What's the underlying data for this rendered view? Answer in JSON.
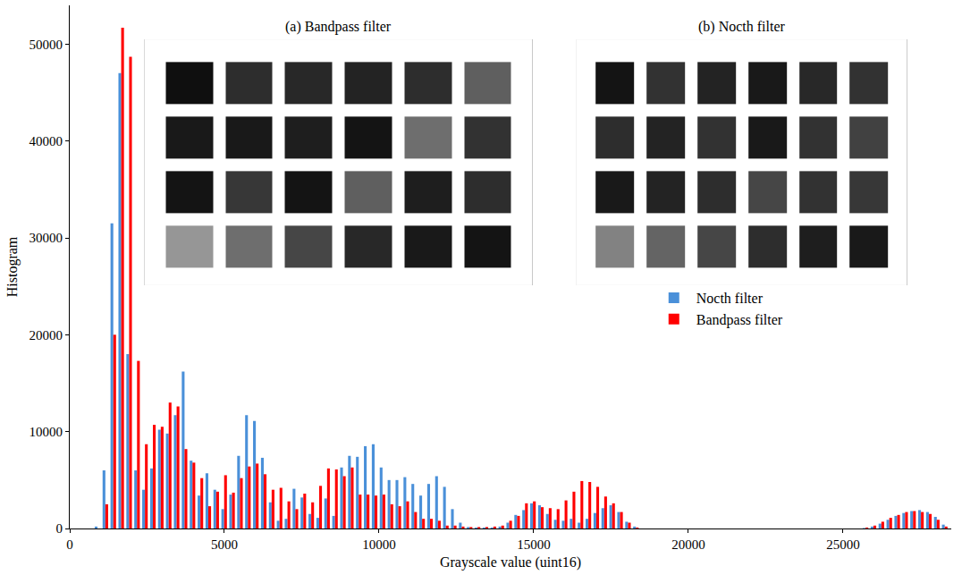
{
  "chart_data": [
    {
      "type": "bar",
      "x_label": "Grayscale value (uint16)",
      "y_label": "Histogram",
      "bins": [
        768,
        1024,
        1280,
        1536,
        1792,
        2048,
        2304,
        2560,
        2816,
        3072,
        3328,
        3584,
        3840,
        4096,
        4352,
        4608,
        4864,
        5120,
        5376,
        5632,
        5888,
        6144,
        6400,
        6656,
        6912,
        7168,
        7424,
        7680,
        7936,
        8192,
        8448,
        8704,
        8960,
        9216,
        9472,
        9728,
        9984,
        10240,
        10496,
        10752,
        11008,
        11264,
        11520,
        11776,
        12032,
        12288,
        12544,
        12800,
        13056,
        13312,
        13568,
        13824,
        14080,
        14336,
        14592,
        14848,
        15104,
        15360,
        15616,
        15872,
        16128,
        16384,
        16640,
        16896,
        17152,
        17408,
        17664,
        17920,
        18176,
        18432,
        18688,
        18944,
        19200,
        19456,
        19712,
        19968,
        20224,
        20480,
        20736,
        20992,
        21248,
        21504,
        21760,
        22016,
        22272,
        22528,
        22784,
        23040,
        23296,
        23552,
        23808,
        24064,
        24320,
        24576,
        24832,
        25088,
        25344,
        25600,
        25856,
        26112,
        26368,
        26624,
        26880,
        27136,
        27392,
        27648,
        27904,
        28160,
        28416
      ],
      "series": [
        {
          "name": "Nocth filter",
          "color": "#4a90d9",
          "values": [
            200,
            6000,
            31500,
            47000,
            18000,
            6000,
            4000,
            6200,
            10200,
            9800,
            11700,
            16200,
            7000,
            3400,
            5700,
            4000,
            2000,
            3500,
            7500,
            11700,
            11100,
            7300,
            2700,
            800,
            1000,
            4100,
            3200,
            1500,
            1100,
            3100,
            1300,
            6300,
            7500,
            7400,
            8500,
            8700,
            6300,
            5000,
            5000,
            5300,
            4600,
            3400,
            4600,
            5400,
            4300,
            2000,
            600,
            150,
            100,
            100,
            100,
            200,
            600,
            1400,
            1900,
            2600,
            2400,
            1500,
            900,
            800,
            1000,
            600,
            1000,
            1600,
            2100,
            2400,
            1700,
            700,
            200,
            0,
            0,
            0,
            0,
            0,
            0,
            0,
            0,
            0,
            0,
            0,
            0,
            0,
            0,
            0,
            0,
            0,
            0,
            0,
            0,
            0,
            0,
            0,
            0,
            0,
            0,
            0,
            0,
            50,
            200,
            500,
            900,
            1300,
            1600,
            1800,
            1900,
            1700,
            1200,
            400
          ]
        },
        {
          "name": "Bandpass filter",
          "color": "#ff0000",
          "values": [
            0,
            2500,
            20000,
            51700,
            48700,
            17300,
            8700,
            10700,
            10500,
            13000,
            12600,
            8200,
            6800,
            5200,
            2300,
            3800,
            5500,
            3700,
            5200,
            6400,
            6700,
            5600,
            4000,
            4200,
            2800,
            2000,
            3600,
            2700,
            4400,
            6200,
            6100,
            5400,
            6300,
            3500,
            3500,
            3400,
            3500,
            2500,
            2300,
            2800,
            1700,
            1000,
            1000,
            800,
            300,
            300,
            200,
            150,
            150,
            150,
            200,
            300,
            800,
            1300,
            2600,
            2800,
            2200,
            2100,
            2000,
            2900,
            3800,
            4900,
            4800,
            4300,
            3300,
            2600,
            1700,
            600,
            100,
            0,
            0,
            0,
            0,
            0,
            0,
            0,
            0,
            0,
            0,
            0,
            0,
            0,
            0,
            0,
            0,
            0,
            0,
            0,
            0,
            0,
            0,
            0,
            0,
            0,
            0,
            0,
            0,
            100,
            300,
            700,
            1100,
            1400,
            1700,
            1800,
            1700,
            1500,
            900,
            200
          ]
        }
      ],
      "xlim": [
        0,
        28500
      ],
      "xticks": [
        0,
        5000,
        10000,
        15000,
        20000,
        25000
      ],
      "ylim": [
        0,
        54000
      ],
      "yticks": [
        0,
        10000,
        20000,
        30000,
        40000,
        50000
      ],
      "grid": false,
      "legend": "right"
    },
    {
      "type": "heatmap",
      "title": "(a) Bandpass filter",
      "cells": [
        [
          15,
          45,
          40,
          35,
          45,
          95
        ],
        [
          25,
          25,
          30,
          20,
          110,
          50
        ],
        [
          20,
          55,
          20,
          95,
          30,
          45
        ],
        [
          150,
          110,
          70,
          40,
          25,
          20
        ]
      ],
      "zlim": [
        0,
        255
      ],
      "tick_labels": false
    },
    {
      "type": "heatmap",
      "title": "(b) Nocth filter",
      "cells": [
        [
          20,
          50,
          35,
          25,
          40,
          50
        ],
        [
          45,
          35,
          50,
          25,
          50,
          65
        ],
        [
          25,
          35,
          45,
          70,
          50,
          55
        ],
        [
          130,
          100,
          70,
          45,
          30,
          25
        ]
      ],
      "zlim": [
        0,
        255
      ],
      "tick_labels": false
    }
  ]
}
